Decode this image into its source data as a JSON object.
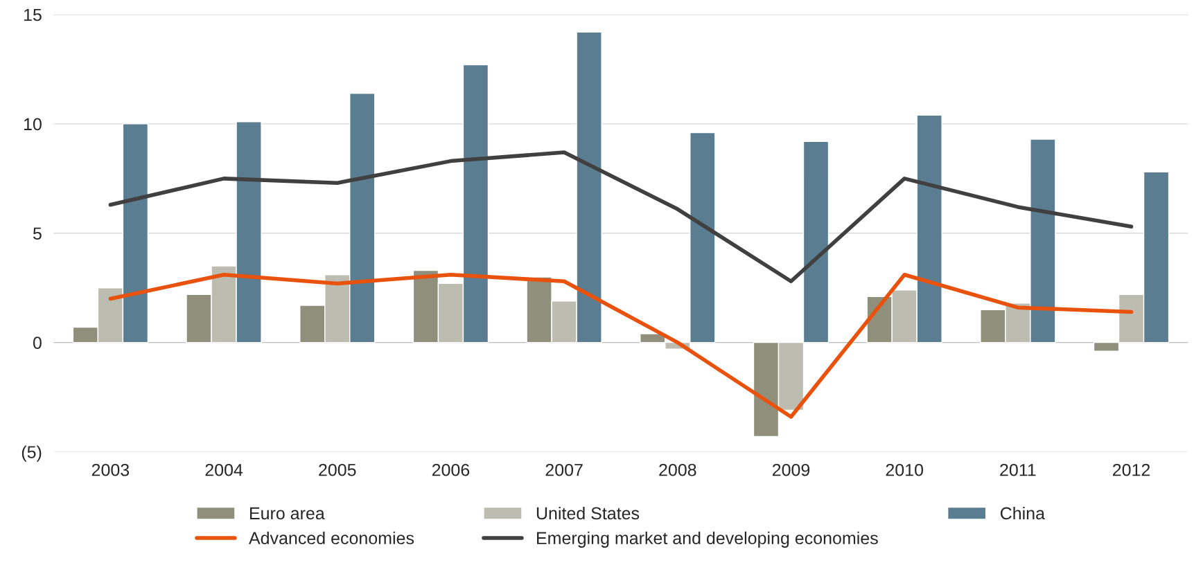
{
  "chart_data": {
    "type": "bar",
    "categories": [
      "2003",
      "2004",
      "2005",
      "2006",
      "2007",
      "2008",
      "2009",
      "2010",
      "2011",
      "2012"
    ],
    "series": [
      {
        "name": "Euro area",
        "color": "#8f8f7c",
        "values": [
          0.7,
          2.2,
          1.7,
          3.3,
          3.0,
          0.4,
          -4.3,
          2.1,
          1.5,
          -0.4
        ]
      },
      {
        "name": "United States",
        "color": "#bdbcb0",
        "values": [
          2.5,
          3.5,
          3.1,
          2.7,
          1.9,
          -0.3,
          -3.1,
          2.4,
          1.8,
          2.2
        ]
      },
      {
        "name": "China",
        "color": "#5a7d91",
        "values": [
          10.0,
          10.1,
          11.4,
          12.7,
          14.2,
          9.6,
          9.2,
          10.4,
          9.3,
          7.8
        ]
      },
      {
        "name": "Advanced economies",
        "type": "line",
        "color": "#e8520c",
        "values": [
          2.0,
          3.1,
          2.7,
          3.1,
          2.8,
          0.0,
          -3.4,
          3.1,
          1.6,
          1.4
        ]
      },
      {
        "name": "Emerging market and developing economies",
        "type": "line",
        "color": "#404040",
        "values": [
          6.3,
          7.5,
          7.3,
          8.3,
          8.7,
          6.1,
          2.8,
          7.5,
          6.2,
          5.3
        ]
      }
    ],
    "ylim": [
      -5,
      15
    ],
    "yticks": [
      {
        "value": -5,
        "label": "(5)"
      },
      0,
      5,
      10,
      15
    ],
    "grid": "y",
    "legend": "bottom"
  }
}
